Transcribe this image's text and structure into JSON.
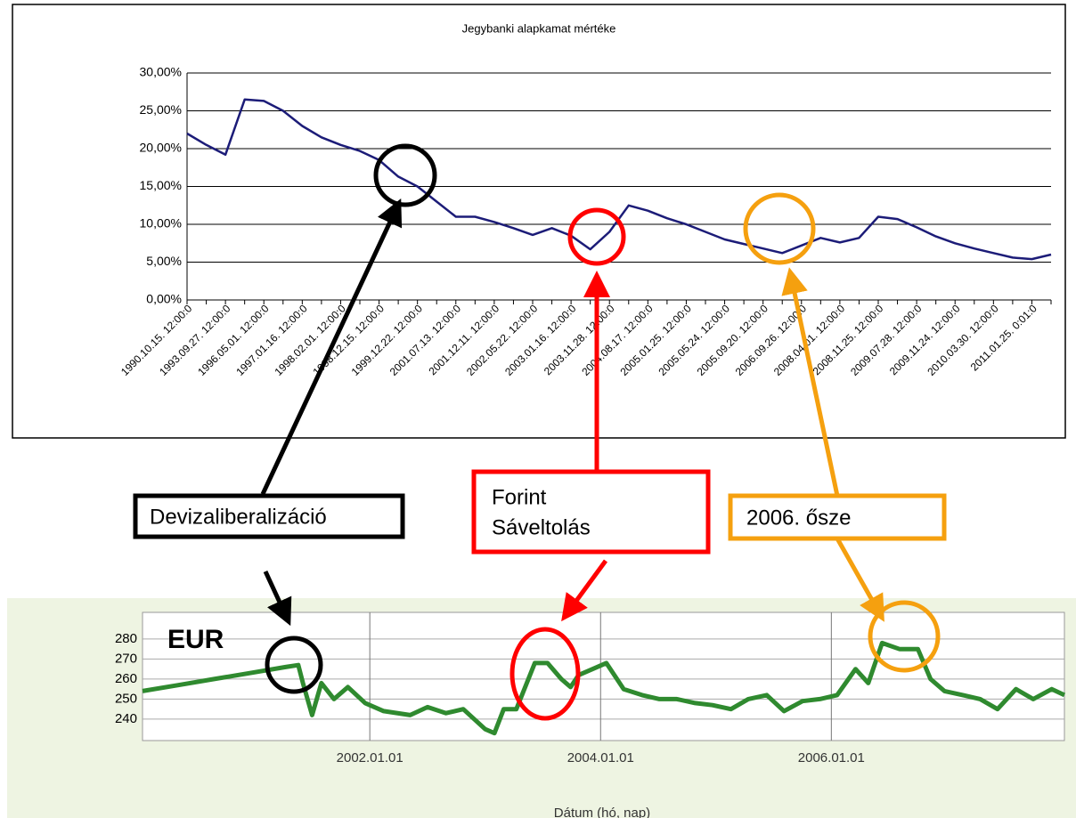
{
  "chart_data": [
    {
      "type": "line",
      "title": "Jegybanki alapkamat mértéke",
      "color": "#1c1c78",
      "categories": [
        "1990.10.15. 12:00:0",
        null,
        "1993.09.27. 12:00:0",
        null,
        "1996.05.01. 12:00:0",
        null,
        "1997.01.16. 12:00:0",
        null,
        "1998.02.01. 12:00:0",
        null,
        "1998.12.15. 12:00:0",
        null,
        "1999.12.22. 12:00:0",
        null,
        "2001.07.13. 12:00:0",
        null,
        "2001.12.11. 12:00:0",
        null,
        "2002.05.22. 12:00:0",
        null,
        "2003.01.16. 12:00:0",
        null,
        "2003.11.28. 12:00:0",
        null,
        "2004.08.17. 12:00:0",
        null,
        "2005.01.25. 12:00:0",
        null,
        "2005.05.24. 12:00:0",
        null,
        "2005.09.20. 12:00:0",
        null,
        "2006.09.26. 12:00:0",
        null,
        "2008.04.01. 12:00:0",
        null,
        "2008.11.25. 12:00:0",
        null,
        "2009.07.28. 12:00:0",
        null,
        "2009.11.24. 12:00:0",
        null,
        "2010.03.30. 12:00:0",
        null,
        "2011.01.25. 0:01:0",
        null
      ],
      "values": [
        22,
        20.5,
        19.2,
        26.5,
        26.3,
        25,
        23,
        21.5,
        20.5,
        19.7,
        18.5,
        16.3,
        15,
        13,
        11,
        11,
        10.3,
        9.5,
        8.6,
        9.5,
        8.5,
        6.7,
        9,
        12.5,
        11.8,
        10.8,
        10,
        9,
        8,
        7.4,
        6.8,
        6.2,
        7.2,
        8.2,
        7.6,
        8.2,
        11,
        10.7,
        9.6,
        8.4,
        7.5,
        6.8,
        6.2,
        5.6,
        5.4,
        6
      ],
      "ylim": [
        0,
        30
      ],
      "yticks": [
        {
          "value": 0,
          "label": "0,00%"
        },
        {
          "value": 5,
          "label": "5,00%"
        },
        {
          "value": 10,
          "label": "10,00%"
        },
        {
          "value": 15,
          "label": "15,00%"
        },
        {
          "value": 20,
          "label": "20,00%"
        },
        {
          "value": 25,
          "label": "25,00%"
        },
        {
          "value": 30,
          "label": "30,00%"
        }
      ],
      "grid": true
    },
    {
      "type": "line",
      "title": "EUR",
      "xlabel": "Dátum (hó, nap)",
      "color": "#2f8a2f",
      "x": [
        2000.03,
        2000.34,
        2000.65,
        2000.96,
        2001.27,
        2001.38,
        2001.42,
        2001.5,
        2001.58,
        2001.69,
        2001.81,
        2001.96,
        2002.12,
        2002.35,
        2002.5,
        2002.66,
        2002.81,
        2003.0,
        2003.08,
        2003.16,
        2003.27,
        2003.43,
        2003.54,
        2003.66,
        2003.74,
        2003.81,
        2003.93,
        2004.05,
        2004.2,
        2004.36,
        2004.51,
        2004.66,
        2004.82,
        2004.97,
        2005.13,
        2005.28,
        2005.44,
        2005.59,
        2005.75,
        2005.9,
        2006.05,
        2006.21,
        2006.32,
        2006.44,
        2006.59,
        2006.75,
        2006.86,
        2006.98,
        2007.14,
        2007.29,
        2007.44,
        2007.6,
        2007.75,
        2007.91,
        2008.02
      ],
      "values": [
        254,
        257,
        260,
        263,
        266,
        267,
        258,
        242,
        258,
        250,
        256,
        248,
        244,
        242,
        246,
        243,
        245,
        235,
        233,
        245,
        245,
        268,
        268,
        260,
        256,
        262,
        265,
        268,
        255,
        252,
        250,
        250,
        248,
        247,
        245,
        250,
        252,
        244,
        249,
        250,
        252,
        265,
        258,
        278,
        275,
        275,
        260,
        254,
        252,
        250,
        245,
        255,
        250,
        255,
        252
      ],
      "xlim": [
        2000.03,
        2008.02
      ],
      "xticks": [
        {
          "value": 2002,
          "label": "2002.01.01"
        },
        {
          "value": 2004,
          "label": "2004.01.01"
        },
        {
          "value": 2006,
          "label": "2006.01.01"
        }
      ],
      "ylim": [
        229.3,
        293.3
      ],
      "yticks": [
        240,
        250,
        260,
        270,
        280
      ],
      "grid": true
    }
  ],
  "annotations": [
    [
      "Devizaliberalizáció"
    ],
    [
      "Forint",
      "Sáveltolás"
    ],
    [
      "2006. ősze"
    ]
  ]
}
